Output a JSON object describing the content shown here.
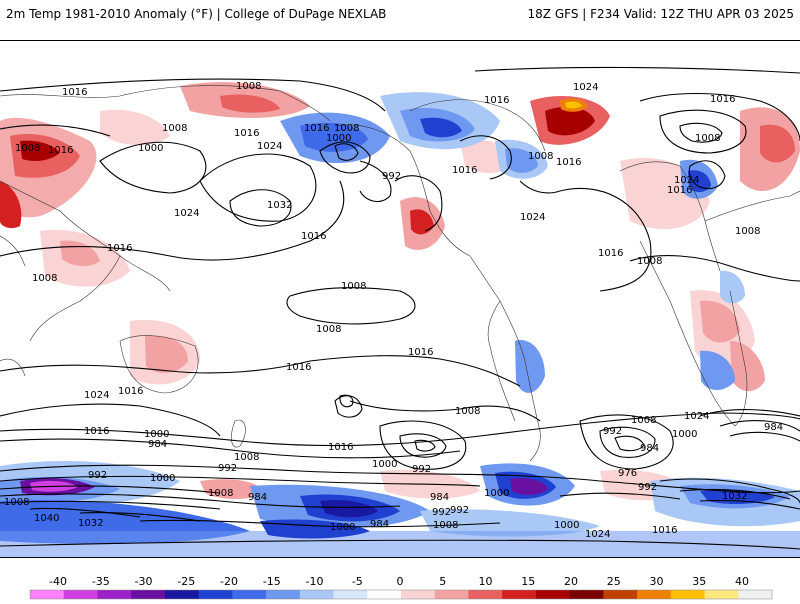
{
  "header": {
    "left": "2m Temp 1981-2010 Anomaly (°F) | College of DuPage NEXLAB",
    "right": "18Z GFS | F234 Valid: 12Z THU APR 03 2025"
  },
  "colorbar": {
    "ticks": [
      "-40",
      "-35",
      "-30",
      "-25",
      "-20",
      "-15",
      "-10",
      "-5",
      "0",
      "5",
      "10",
      "15",
      "20",
      "25",
      "30",
      "35",
      "40"
    ],
    "colors": [
      "#ff80ff",
      "#d040e0",
      "#9a20c8",
      "#6a10a0",
      "#1818a0",
      "#2040d0",
      "#3f6ae8",
      "#6f98f0",
      "#a9c8f5",
      "#d8e6fa",
      "#ffffff",
      "#fad4d4",
      "#f2a2a2",
      "#e86060",
      "#d42020",
      "#a80000",
      "#780000",
      "#c04000",
      "#f08000",
      "#ffc000",
      "#ffe880",
      "#f0f0f0"
    ]
  },
  "isobars": [
    {
      "text": "1008"
    },
    {
      "text": "1016"
    },
    {
      "text": "1024"
    },
    {
      "text": "1016"
    },
    {
      "text": "1008"
    },
    {
      "text": "1008"
    },
    {
      "text": "1016"
    },
    {
      "text": "1016"
    },
    {
      "text": "1016"
    },
    {
      "text": "1000"
    },
    {
      "text": "1024"
    },
    {
      "text": "1032"
    },
    {
      "text": "1016"
    },
    {
      "text": "1008"
    },
    {
      "text": "1000"
    },
    {
      "text": "992"
    },
    {
      "text": "1016"
    },
    {
      "text": "1024"
    },
    {
      "text": "1008"
    },
    {
      "text": "1016"
    },
    {
      "text": "1016"
    },
    {
      "text": "1024"
    },
    {
      "text": "1016"
    },
    {
      "text": "1008"
    },
    {
      "text": "1008"
    },
    {
      "text": "1008"
    },
    {
      "text": "1024"
    },
    {
      "text": "1016"
    },
    {
      "text": "1016"
    },
    {
      "text": "1008"
    },
    {
      "text": "1016"
    },
    {
      "text": "1008"
    },
    {
      "text": "1008"
    },
    {
      "text": "1016"
    },
    {
      "text": "1016"
    },
    {
      "text": "1024"
    },
    {
      "text": "1016"
    },
    {
      "text": "1000"
    },
    {
      "text": "984"
    },
    {
      "text": "1016"
    },
    {
      "text": "1008"
    },
    {
      "text": "1000"
    },
    {
      "text": "992"
    },
    {
      "text": "1008"
    },
    {
      "text": "992"
    },
    {
      "text": "1000"
    },
    {
      "text": "1008"
    },
    {
      "text": "984"
    },
    {
      "text": "976"
    },
    {
      "text": "992"
    },
    {
      "text": "1024"
    },
    {
      "text": "984"
    },
    {
      "text": "992"
    },
    {
      "text": "1000"
    },
    {
      "text": "1008"
    },
    {
      "text": "1040"
    },
    {
      "text": "1032"
    },
    {
      "text": "992"
    },
    {
      "text": "1008"
    },
    {
      "text": "984"
    },
    {
      "text": "992"
    },
    {
      "text": "1000"
    },
    {
      "text": "984"
    },
    {
      "text": "992"
    },
    {
      "text": "1000"
    },
    {
      "text": "984"
    },
    {
      "text": "1008"
    },
    {
      "text": "1032"
    },
    {
      "text": "1000"
    },
    {
      "text": "1024"
    },
    {
      "text": "1016"
    }
  ]
}
